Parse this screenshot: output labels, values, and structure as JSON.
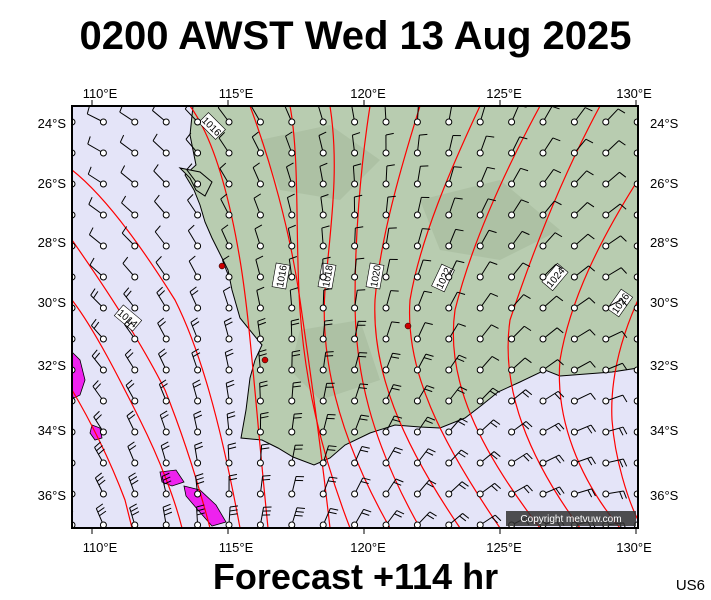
{
  "header": {
    "title": "0200 AWST Wed 13 Aug 2025"
  },
  "footer": {
    "forecast": "Forecast +114 hr",
    "code": "US6"
  },
  "map": {
    "lon_labels": [
      "110°E",
      "115°E",
      "120°E",
      "125°E",
      "130°E"
    ],
    "lat_labels": [
      "24°S",
      "26°S",
      "28°S",
      "30°S",
      "32°S",
      "34°S",
      "36°S"
    ],
    "isobar_labels": [
      "1016",
      "1016",
      "1018",
      "1020",
      "1022",
      "1024",
      "1026",
      "1014"
    ],
    "copyright": "Copyright metvuw.com",
    "colors": {
      "ocean": "#e4e4f8",
      "land": "#b8ccb0",
      "isobar": "#ff0000",
      "rain": "#ee22ee"
    }
  }
}
